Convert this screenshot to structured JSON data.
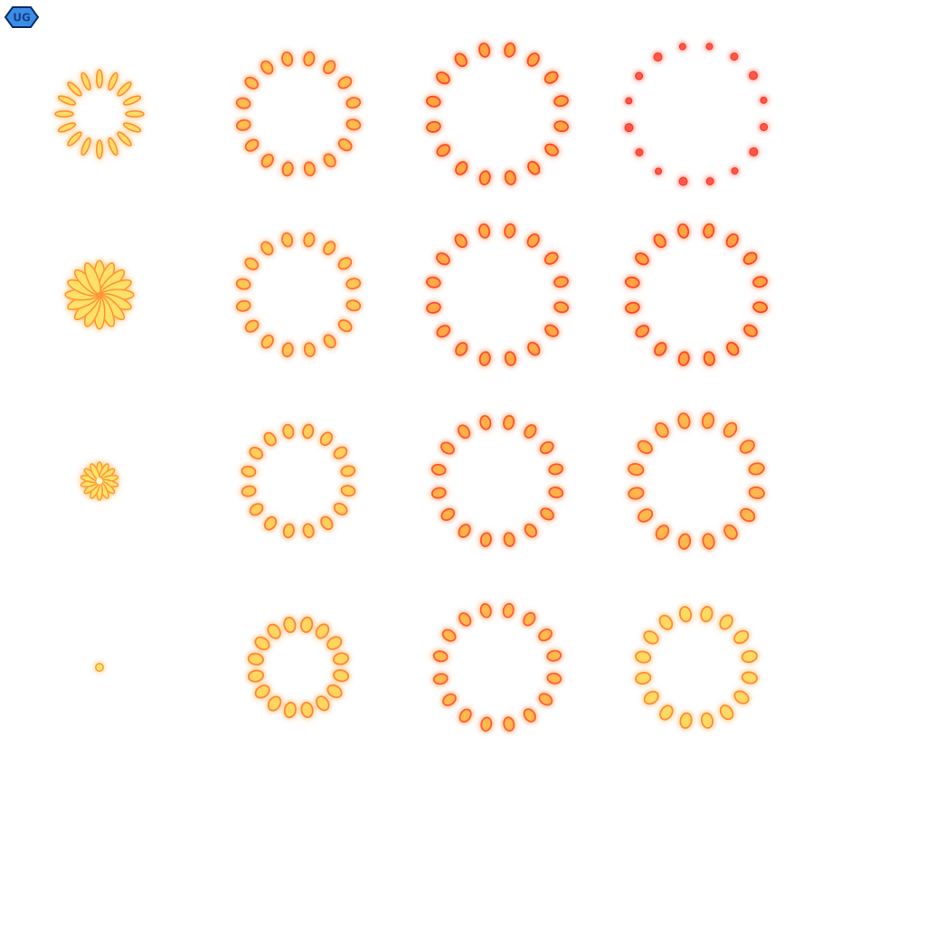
{
  "logo": {
    "text": "UG",
    "icon": "blue-diamond-badge-icon",
    "fill": "#3a8ee6",
    "outline": "#0d2a66"
  },
  "sprite_sheet": {
    "grid": {
      "rows": 4,
      "columns": 4
    },
    "theme": "firework-burst-animation",
    "colors": {
      "core_light": "#fffbd0",
      "core_yellow": "#ffe56a",
      "ring_orange": "#ff9a3a",
      "ring_red": "#ff3a2a",
      "glow_red": "#ff5a4a"
    },
    "frames": [
      {
        "frame": 1,
        "shape": "dot",
        "petals": 1,
        "radius": 0,
        "petal_size": 6,
        "core": true,
        "heat": 0.0
      },
      {
        "frame": 2,
        "shape": "star",
        "petals": 14,
        "radius": 0,
        "petal_size": 20,
        "core": true,
        "heat": 0.0
      },
      {
        "frame": 3,
        "shape": "star",
        "petals": 16,
        "radius": 0,
        "petal_size": 36,
        "core": false,
        "heat": 0.05
      },
      {
        "frame": 4,
        "shape": "star",
        "petals": 16,
        "radius": 28,
        "petal_size": 20,
        "core": false,
        "heat": 0.1
      },
      {
        "frame": 5,
        "shape": "ring",
        "petals": 16,
        "radius": 48,
        "petal_size": 11,
        "core": false,
        "heat": 0.2
      },
      {
        "frame": 6,
        "shape": "ring",
        "petals": 16,
        "radius": 56,
        "petal_size": 10,
        "core": false,
        "heat": 0.3
      },
      {
        "frame": 7,
        "shape": "ring",
        "petals": 16,
        "radius": 62,
        "petal_size": 10,
        "core": false,
        "heat": 0.4
      },
      {
        "frame": 8,
        "shape": "ring",
        "petals": 16,
        "radius": 62,
        "petal_size": 10,
        "core": false,
        "heat": 0.55
      },
      {
        "frame": 9,
        "shape": "ring",
        "petals": 16,
        "radius": 64,
        "petal_size": 10,
        "core": false,
        "heat": 0.6
      },
      {
        "frame": 10,
        "shape": "ring",
        "petals": 16,
        "radius": 66,
        "petal_size": 10,
        "core": false,
        "heat": 0.7
      },
      {
        "frame": 11,
        "shape": "ring",
        "petals": 16,
        "radius": 72,
        "petal_size": 10,
        "core": false,
        "heat": 0.8
      },
      {
        "frame": 12,
        "shape": "ring",
        "petals": 16,
        "radius": 72,
        "petal_size": 10,
        "core": false,
        "heat": 0.85
      },
      {
        "frame": 13,
        "shape": "ring",
        "petals": 16,
        "radius": 60,
        "petal_size": 11,
        "core": false,
        "heat": 0.15
      },
      {
        "frame": 14,
        "shape": "ring",
        "petals": 16,
        "radius": 68,
        "petal_size": 11,
        "core": false,
        "heat": 0.6
      },
      {
        "frame": 15,
        "shape": "ring",
        "petals": 16,
        "radius": 72,
        "petal_size": 10,
        "core": false,
        "heat": 0.9
      },
      {
        "frame": 16,
        "shape": "spark",
        "petals": 16,
        "radius": 76,
        "petal_size": 6,
        "core": false,
        "heat": 1.0
      }
    ]
  }
}
